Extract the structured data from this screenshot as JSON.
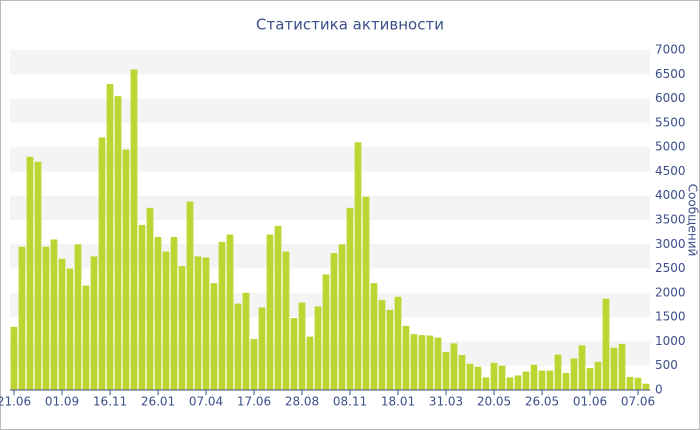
{
  "chart_data": {
    "type": "bar",
    "title": "Статистика активности",
    "y_label": "Сообщений",
    "categories": [
      "21.06",
      null,
      null,
      null,
      null,
      null,
      "01.09",
      null,
      null,
      null,
      null,
      null,
      "16.11",
      null,
      null,
      null,
      null,
      null,
      "26.01",
      null,
      null,
      null,
      null,
      null,
      "07.04",
      null,
      null,
      null,
      null,
      null,
      "17.06",
      null,
      null,
      null,
      null,
      null,
      "28.08",
      null,
      null,
      null,
      null,
      null,
      "08.11",
      null,
      null,
      null,
      null,
      null,
      "18.01",
      null,
      null,
      null,
      null,
      null,
      "31.03",
      null,
      null,
      null,
      null,
      null,
      "20.05",
      null,
      null,
      null,
      null,
      null,
      "26.05",
      null,
      null,
      null,
      null,
      null,
      "01.06",
      null,
      null,
      null,
      null,
      null,
      "07.06",
      null
    ],
    "values": [
      1300,
      2950,
      4800,
      4700,
      2950,
      3100,
      2700,
      2500,
      3000,
      2150,
      2750,
      5200,
      6300,
      6050,
      4950,
      6600,
      3400,
      3750,
      3150,
      2850,
      3150,
      2550,
      3880,
      2750,
      2730,
      2200,
      3050,
      3200,
      1780,
      2000,
      1050,
      1700,
      3200,
      3380,
      2850,
      1480,
      1800,
      1100,
      1720,
      2380,
      2820,
      3000,
      3750,
      5100,
      3980,
      2200,
      1850,
      1650,
      1920,
      1320,
      1150,
      1130,
      1120,
      1080,
      780,
      960,
      720,
      540,
      480,
      260,
      560,
      500,
      260,
      300,
      380,
      520,
      400,
      400,
      730,
      350,
      650,
      920,
      450,
      580,
      1880,
      870,
      950,
      270,
      250,
      130
    ],
    "color": "#bcd531",
    "ylim": [
      0,
      7000
    ],
    "yticks": [
      0,
      500,
      1000,
      1500,
      2000,
      2500,
      3000,
      3500,
      4000,
      4500,
      5000,
      5500,
      6000,
      6500,
      7000
    ],
    "grid": true
  }
}
